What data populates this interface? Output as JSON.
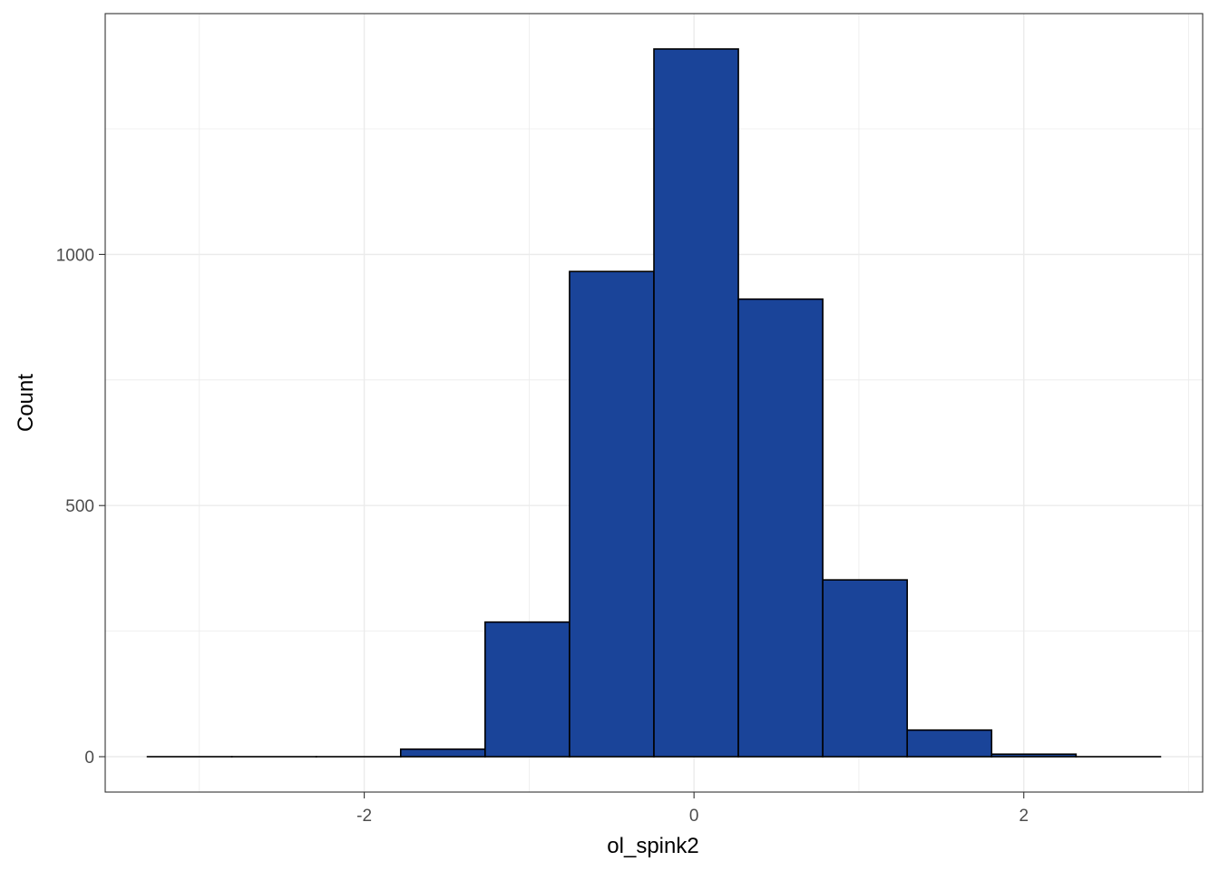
{
  "chart_data": {
    "type": "bar",
    "subtype": "histogram",
    "title": "",
    "xlabel": "ol_spink2",
    "ylabel": "Count",
    "bin_width": 0.512,
    "bins": [
      {
        "x_start": -3.315,
        "x_end": -2.803,
        "count": 0
      },
      {
        "x_start": -2.803,
        "x_end": -2.291,
        "count": 0
      },
      {
        "x_start": -2.291,
        "x_end": -1.779,
        "count": 0
      },
      {
        "x_start": -1.779,
        "x_end": -1.267,
        "count": 15
      },
      {
        "x_start": -1.267,
        "x_end": -0.755,
        "count": 268
      },
      {
        "x_start": -0.755,
        "x_end": -0.243,
        "count": 966
      },
      {
        "x_start": -0.243,
        "x_end": 0.269,
        "count": 1409
      },
      {
        "x_start": 0.269,
        "x_end": 0.781,
        "count": 911
      },
      {
        "x_start": 0.781,
        "x_end": 1.293,
        "count": 352
      },
      {
        "x_start": 1.293,
        "x_end": 1.805,
        "count": 53
      },
      {
        "x_start": 1.805,
        "x_end": 2.317,
        "count": 5
      },
      {
        "x_start": 2.317,
        "x_end": 2.829,
        "count": 0
      }
    ],
    "x_ticks": [
      -2,
      0,
      2
    ],
    "x_tick_labels": [
      "-2",
      "0",
      "2"
    ],
    "y_ticks": [
      0,
      500,
      1000
    ],
    "y_tick_labels": [
      "0",
      "500",
      "1000"
    ],
    "xlim": [
      -3.571,
      3.085
    ],
    "ylim": [
      -70.45,
      1479.45
    ],
    "grid": true,
    "fill_color": "#1a4499",
    "edge_color": "#000000",
    "grid_color": "#ebebeb",
    "panel_border_color": "#333333"
  }
}
